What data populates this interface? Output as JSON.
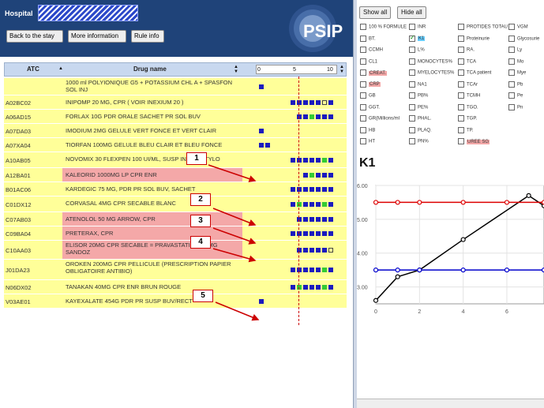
{
  "header": {
    "hospital_label": "Hospital",
    "buttons": {
      "back": "Back to the stay",
      "more": "More information",
      "rule": "Rule info"
    },
    "logo_text": "PSIP"
  },
  "grid": {
    "columns": {
      "atc": "ATC",
      "drug": "Drug name"
    },
    "scale": {
      "min": "0",
      "mid": "5",
      "max": "10"
    },
    "rows": [
      {
        "atc": "",
        "drug": "1000 ml POLYIONIQUE G5 + POTASSIUM CHL A + SPASFON SOL INJ",
        "pink": false,
        "viz": [
          "b"
        ]
      },
      {
        "atc": "A02BC02",
        "drug": "INIPOMP 20 MG, CPR ( VOIR INEXIUM 20 )",
        "pink": false,
        "viz": [
          "b",
          "b",
          "b",
          "b",
          "b",
          "o",
          "b"
        ]
      },
      {
        "atc": "A06AD15",
        "drug": "FORLAX 10G PDR ORALE SACHET PR SOL BUV",
        "pink": false,
        "viz": [
          "b",
          "b",
          "g",
          "b",
          "b",
          "b"
        ]
      },
      {
        "atc": "A07DA03",
        "drug": "IMODIUM 2MG GELULE VERT FONCE ET VERT CLAIR",
        "pink": false,
        "viz": [
          "b"
        ]
      },
      {
        "atc": "A07XA04",
        "drug": "TIORFAN 100MG GELULE BLEU CLAIR ET BLEU FONCE",
        "pink": false,
        "viz": [
          "b",
          "b"
        ]
      },
      {
        "atc": "A10AB05",
        "drug": "NOVOMIX 30 FLEXPEN 100 UI/ML, SUSP INJ EN STYLO",
        "pink": false,
        "viz": [
          "b",
          "b",
          "b",
          "b",
          "b",
          "g",
          "b"
        ]
      },
      {
        "atc": "A12BA01",
        "drug": "KALEORID 1000MG LP CPR ENR",
        "pink": true,
        "viz": [
          "b",
          "g",
          "b",
          "b",
          "b"
        ]
      },
      {
        "atc": "B01AC06",
        "drug": "KARDEGIC 75 MG, PDR PR SOL BUV, SACHET",
        "pink": false,
        "viz": [
          "b",
          "b",
          "b",
          "b",
          "b",
          "b",
          "b"
        ]
      },
      {
        "atc": "C01DX12",
        "drug": "CORVASAL 4MG CPR SECABLE BLANC",
        "pink": false,
        "viz": [
          "b",
          "g",
          "b",
          "b",
          "b",
          "g",
          "b"
        ]
      },
      {
        "atc": "C07AB03",
        "drug": "ATENOLOL 50 MG ARROW, CPR",
        "pink": true,
        "viz": [
          "b",
          "b",
          "b",
          "b",
          "b",
          "b"
        ]
      },
      {
        "atc": "C09BA04",
        "drug": "PRETERAX, CPR",
        "pink": true,
        "viz": [
          "b",
          "b",
          "b",
          "b",
          "b",
          "b",
          "b"
        ]
      },
      {
        "atc": "C10AA03",
        "drug": "ELISOR 20MG CPR SECABLE = PRAVASTATINE 20 MG SANDOZ",
        "pink": true,
        "viz": [
          "b",
          "b",
          "b",
          "b",
          "b",
          "o"
        ]
      },
      {
        "atc": "J01DA23",
        "drug": "OROKEN 200MG CPR PELLICULE (PRESCRIPTION PAPIER OBLIGATOIRE ANTIBIO)",
        "pink": false,
        "viz": [
          "b",
          "b",
          "b",
          "b",
          "b",
          "g",
          "b"
        ]
      },
      {
        "atc": "N06DX02",
        "drug": "TANAKAN 40MG CPR ENR BRUN ROUGE",
        "pink": false,
        "viz": [
          "b",
          "g",
          "b",
          "b",
          "b",
          "g",
          "b"
        ]
      },
      {
        "atc": "V03AE01",
        "drug": "KAYEXALATE 454G PDR PR SUSP BUV/RECT",
        "pink": false,
        "viz": [
          "b"
        ]
      }
    ],
    "callouts": [
      "1",
      "2",
      "3",
      "4",
      "5"
    ]
  },
  "right": {
    "show_all": "Show all",
    "hide_all": "Hide all",
    "col1": [
      "100 % FORMULE",
      "BT.",
      "CCMH",
      "CL1",
      "CREAT.",
      "CRP",
      "GB",
      "GGT.",
      "GR(Millions/ml",
      "HB",
      "HT"
    ],
    "col2": [
      "INR",
      "K1",
      "L%",
      "MONOCYTES%",
      "MYELOCYTES%",
      "NA1",
      "PB%",
      "PE%",
      "PHAL.",
      "PLAQ.",
      "PN%"
    ],
    "col3": [
      "PROTIDES TOTAU",
      "Proteinurie",
      "RA.",
      "TCA",
      "TCA patient",
      "TCAr",
      "TCMH",
      "TGO.",
      "TGP.",
      "TP.",
      "UREE SG"
    ],
    "col4": [
      "VGM",
      "Glycosurie",
      "Ly",
      "Mo",
      "Mye",
      "Pb",
      "Pe",
      "Pn"
    ],
    "chart_title": "K1"
  },
  "chart_data": {
    "type": "line",
    "title": "K1",
    "xlabel": "",
    "ylabel": "",
    "xlim": [
      0,
      7.7
    ],
    "ylim": [
      2.5,
      6.0
    ],
    "x_ticks": [
      "0",
      "2",
      "4",
      "6"
    ],
    "y_ticks": [
      "6.00",
      "5.00",
      "4.00",
      "3.00"
    ],
    "series": [
      {
        "color": "#000000",
        "x": [
          0,
          1,
          2,
          4,
          7,
          7.7
        ],
        "y": [
          2.6,
          3.3,
          3.5,
          4.4,
          5.7,
          5.4
        ]
      },
      {
        "color": "#dd0000",
        "x": [
          0,
          1,
          2,
          4,
          6,
          7.7
        ],
        "y": [
          5.5,
          5.5,
          5.5,
          5.5,
          5.5,
          5.5
        ]
      },
      {
        "color": "#0000cc",
        "x": [
          0,
          1,
          2,
          4,
          6,
          7.7
        ],
        "y": [
          3.5,
          3.5,
          3.5,
          3.5,
          3.5,
          3.5
        ]
      }
    ]
  }
}
